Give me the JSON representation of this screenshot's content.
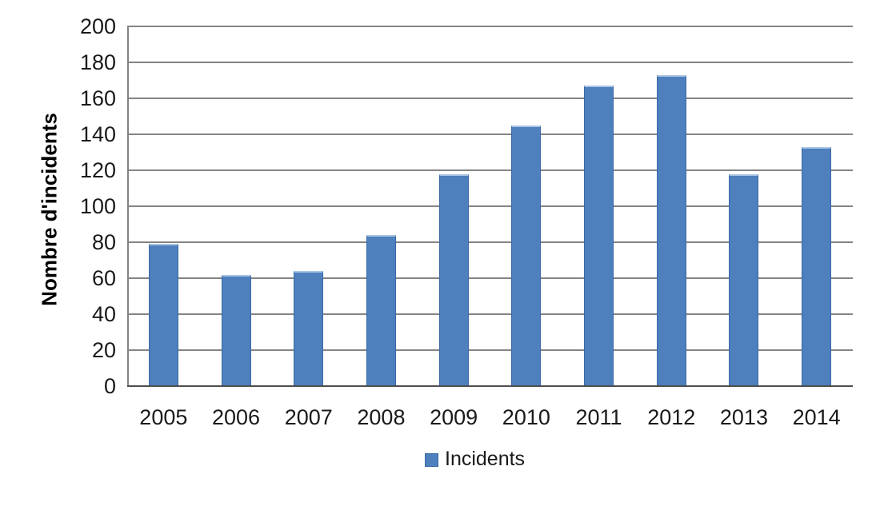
{
  "chart_data": {
    "type": "bar",
    "title": "",
    "categories": [
      "2005",
      "2006",
      "2007",
      "2008",
      "2009",
      "2010",
      "2011",
      "2012",
      "2013",
      "2014"
    ],
    "values": [
      79,
      62,
      64,
      84,
      118,
      145,
      167,
      173,
      118,
      133
    ],
    "xlabel": "",
    "ylabel": "Nombre d'incidents",
    "ylim": [
      0,
      200
    ],
    "ytick_step": 20,
    "grid": "horizontal",
    "legend": [
      "Incidents"
    ],
    "legend_position": "bottom-center",
    "colors": {
      "bar_fill": "#4D80BD",
      "bar_border": "#3A69A5",
      "bar_highlight": "#A9C4E2",
      "gridline": "#848484",
      "axis_line": "#4F4F4F",
      "text": "#1A1A1A"
    }
  }
}
